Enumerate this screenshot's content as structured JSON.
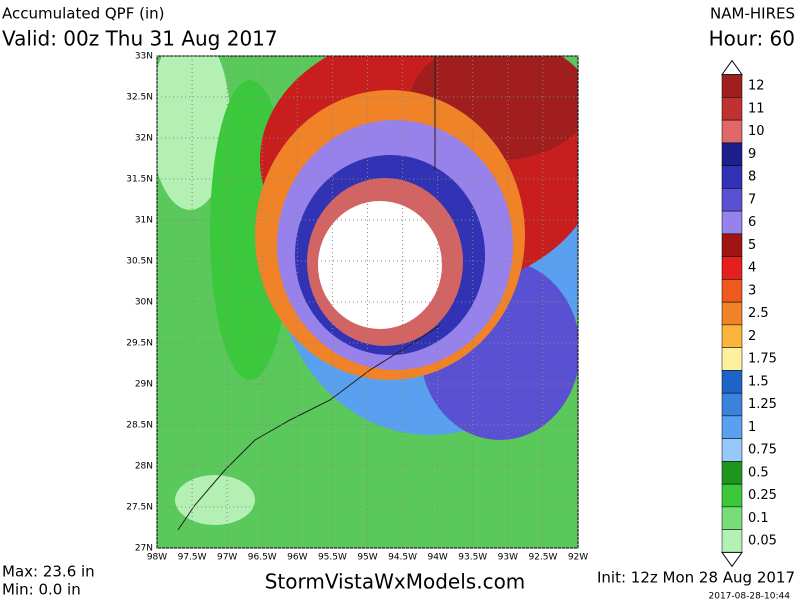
{
  "header": {
    "title": "Accumulated QPF (in)",
    "valid": "Valid: 00z Thu 31 Aug 2017",
    "model": "NAM-HIRES",
    "hour": "Hour: 60"
  },
  "map": {
    "lat_ticks": [
      {
        "value": 27,
        "label": "27N"
      },
      {
        "value": 27.5,
        "label": "27.5N"
      },
      {
        "value": 28,
        "label": "28N"
      },
      {
        "value": 28.5,
        "label": "28.5N"
      },
      {
        "value": 29,
        "label": "29N"
      },
      {
        "value": 29.5,
        "label": "29.5N"
      },
      {
        "value": 30,
        "label": "30N"
      },
      {
        "value": 30.5,
        "label": "30.5N"
      },
      {
        "value": 31,
        "label": "31N"
      },
      {
        "value": 31.5,
        "label": "31.5N"
      },
      {
        "value": 32,
        "label": "32N"
      },
      {
        "value": 32.5,
        "label": "32.5N"
      },
      {
        "value": 33,
        "label": "33N"
      }
    ],
    "lon_ticks": [
      {
        "value": -98,
        "label": "98W"
      },
      {
        "value": -97.5,
        "label": "97.5W"
      },
      {
        "value": -97,
        "label": "97W"
      },
      {
        "value": -96.5,
        "label": "96.5W"
      },
      {
        "value": -96,
        "label": "96W"
      },
      {
        "value": -95.5,
        "label": "95.5W"
      },
      {
        "value": -95,
        "label": "95W"
      },
      {
        "value": -94.5,
        "label": "94.5W"
      },
      {
        "value": -94,
        "label": "94W"
      },
      {
        "value": -93.5,
        "label": "93.5W"
      },
      {
        "value": -93,
        "label": "93W"
      },
      {
        "value": -92.5,
        "label": "92.5W"
      },
      {
        "value": -92,
        "label": "92W"
      }
    ]
  },
  "colorbar": {
    "levels": [
      12,
      11,
      10,
      9,
      8,
      7,
      6,
      5,
      4,
      3,
      2.5,
      2,
      1.75,
      1.5,
      1.25,
      1,
      0.75,
      0.5,
      0.25,
      0.1,
      0.05
    ],
    "colors": [
      "#a01e1e",
      "#c03232",
      "#e06868",
      "#1e1e8c",
      "#3232b4",
      "#5a50d2",
      "#9682ea",
      "#a01414",
      "#e61e1e",
      "#f05a1e",
      "#f08228",
      "#fab43c",
      "#fff0a0",
      "#1e64c8",
      "#3c82dc",
      "#5aa0f0",
      "#96c8fa",
      "#1e961e",
      "#3cc83c",
      "#78dc78",
      "#b4f0b4"
    ]
  },
  "footer": {
    "max": "Max: 23.6 in",
    "min": "Min: 0.0 in",
    "site": "StormVistaWxModels.com",
    "init": "Init: 12z Mon 28 Aug 2017",
    "stamp": "2017-08-28-10:44"
  }
}
